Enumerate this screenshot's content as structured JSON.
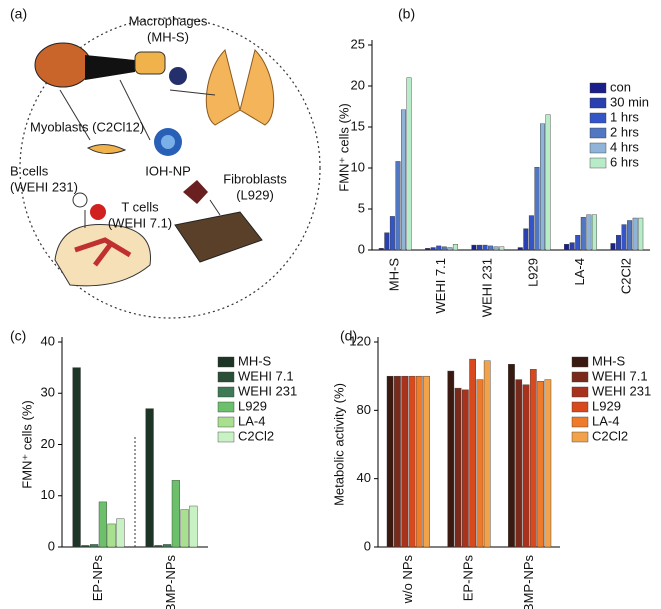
{
  "diagram": {
    "panel_label": "(a)",
    "labels": [
      [
        "Macrophages",
        "(MH-S)"
      ],
      [
        "Myoblasts (C2Cl12)"
      ],
      [
        "IOH-NP"
      ],
      [
        "B cells",
        "(WEHI 231)"
      ],
      [
        "T cells",
        "(WEHI 7.1)"
      ],
      [
        "Fibroblasts",
        "(L929)"
      ]
    ]
  },
  "chart_data": [
    {
      "type": "bar",
      "panel_label": "(b)",
      "ylabel": "FMN⁺ cells (%)",
      "categories": [
        "MH-S",
        "WEHI 7.1",
        "WEHI 231",
        "L929",
        "LA-4",
        "C2Cl2"
      ],
      "series": [
        {
          "name": "con",
          "color": "#1a1f8a",
          "values": [
            0.2,
            0.2,
            0.6,
            0.3,
            0.7,
            0.8
          ]
        },
        {
          "name": "30 min",
          "color": "#2a3fb0",
          "values": [
            2.1,
            0.3,
            0.6,
            2.6,
            0.9,
            1.8
          ]
        },
        {
          "name": "1 hrs",
          "color": "#3455c8",
          "values": [
            4.1,
            0.5,
            0.6,
            4.2,
            1.8,
            3.1
          ]
        },
        {
          "name": "2 hrs",
          "color": "#5277c2",
          "values": [
            10.8,
            0.4,
            0.5,
            10.1,
            4.0,
            3.6
          ]
        },
        {
          "name": "4 hrs",
          "color": "#8fb4d8",
          "values": [
            17.1,
            0.3,
            0.4,
            15.4,
            4.3,
            3.9
          ]
        },
        {
          "name": "6 hrs",
          "color": "#b8ecc8",
          "values": [
            21.0,
            0.7,
            0.4,
            16.5,
            4.3,
            3.9
          ]
        }
      ],
      "ylim": [
        0,
        25
      ],
      "yticks": [
        0,
        5,
        10,
        15,
        20,
        25
      ],
      "legend": "upper right"
    },
    {
      "type": "bar",
      "panel_label": "(c)",
      "ylabel": "FMN⁺ cells (%)",
      "categories": [
        "EP-NPs",
        "BMP-NPs"
      ],
      "series": [
        {
          "name": "MH-S",
          "color": "#1c3526",
          "values": [
            35,
            27
          ]
        },
        {
          "name": "WEHI 7.1",
          "color": "#2a4f37",
          "values": [
            0.3,
            0.3
          ]
        },
        {
          "name": "WEHI 231",
          "color": "#3d7a55",
          "values": [
            0.5,
            0.5
          ]
        },
        {
          "name": "L929",
          "color": "#6cc06c",
          "values": [
            8.8,
            13
          ]
        },
        {
          "name": "LA-4",
          "color": "#a9e08f",
          "values": [
            4.5,
            7.3
          ]
        },
        {
          "name": "C2Cl2",
          "color": "#c8f2c4",
          "values": [
            5.5,
            8
          ]
        }
      ],
      "ylim": [
        0,
        40
      ],
      "yticks": [
        0,
        10,
        20,
        30,
        40
      ],
      "legend": "upper right"
    },
    {
      "type": "bar",
      "panel_label": "(d)",
      "ylabel": "Metabolic activity (%)",
      "categories": [
        "w/o NPs",
        "EP-NPs",
        "BMP-NPs"
      ],
      "series": [
        {
          "name": "MH-S",
          "color": "#3a1a10",
          "values": [
            100,
            103,
            107
          ]
        },
        {
          "name": "WEHI 7.1",
          "color": "#7a2a1a",
          "values": [
            100,
            93,
            98
          ]
        },
        {
          "name": "WEHI 231",
          "color": "#a8321c",
          "values": [
            100,
            92,
            95
          ]
        },
        {
          "name": "L929",
          "color": "#d84a1e",
          "values": [
            100,
            110,
            104
          ]
        },
        {
          "name": "LA-4",
          "color": "#ef7a2a",
          "values": [
            100,
            98,
            97
          ]
        },
        {
          "name": "C2Cl2",
          "color": "#f2a24a",
          "values": [
            100,
            109,
            98
          ]
        }
      ],
      "ylim": [
        0,
        120
      ],
      "yticks": [
        0,
        40,
        80,
        120
      ],
      "legend": "upper right"
    }
  ]
}
